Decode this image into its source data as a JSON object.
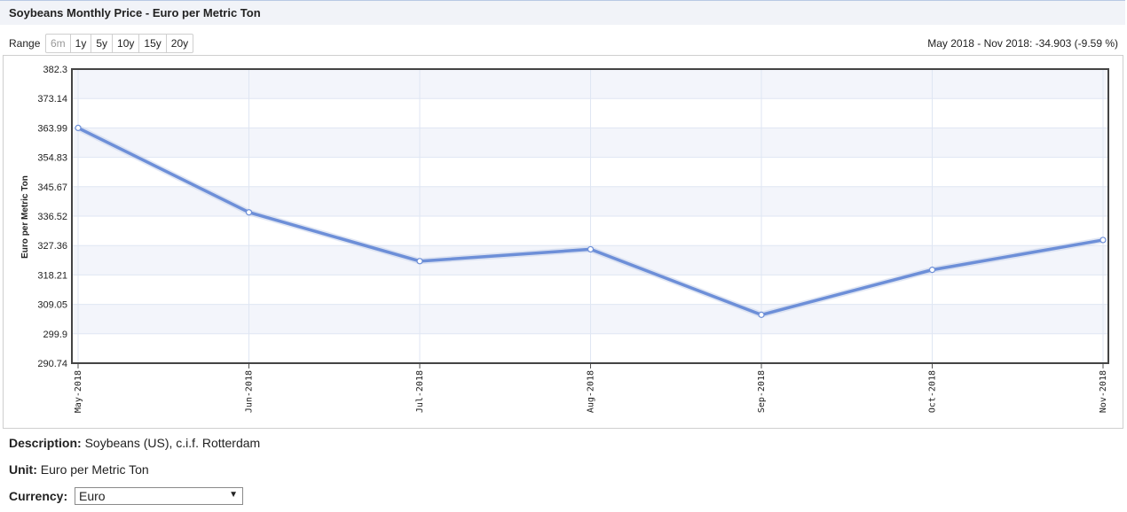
{
  "header": {
    "title": "Soybeans Monthly Price - Euro per Metric Ton"
  },
  "range": {
    "label": "Range",
    "buttons": [
      {
        "label": "6m",
        "disabled": true
      },
      {
        "label": "1y",
        "disabled": false
      },
      {
        "label": "5y",
        "disabled": false
      },
      {
        "label": "10y",
        "disabled": false
      },
      {
        "label": "15y",
        "disabled": false
      },
      {
        "label": "20y",
        "disabled": false
      }
    ]
  },
  "change_text": "May 2018 - Nov 2018: -34.903 (-9.59 %)",
  "chart_data": {
    "type": "line",
    "title": "",
    "ylabel": "Euro per Metric Ton",
    "xlabel": "",
    "categories": [
      "May-2018",
      "Jun-2018",
      "Jul-2018",
      "Aug-2018",
      "Sep-2018",
      "Oct-2018",
      "Nov-2018"
    ],
    "series": [
      {
        "values": [
          363.99,
          337.7,
          322.5,
          326.2,
          305.8,
          319.8,
          329.09
        ]
      }
    ],
    "ylim": [
      290.74,
      382.3
    ],
    "yticks": [
      "382.3",
      "373.14",
      "363.99",
      "354.83",
      "345.67",
      "336.52",
      "327.36",
      "318.21",
      "309.05",
      "299.9",
      "290.74"
    ],
    "grid": true,
    "line_color": "#6d8fd8"
  },
  "info": {
    "description_label": "Description:",
    "description_value": "Soybeans (US), c.i.f. Rotterdam",
    "unit_label": "Unit:",
    "unit_value": "Euro per Metric Ton",
    "currency_label": "Currency:",
    "currency_value": "Euro"
  }
}
